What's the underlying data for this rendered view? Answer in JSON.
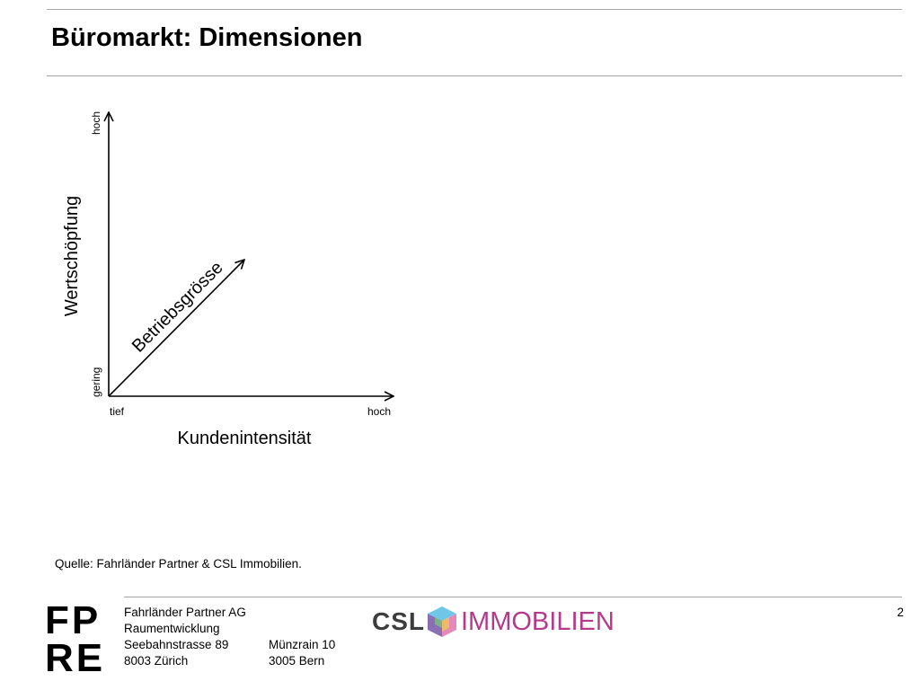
{
  "slide": {
    "title": "Büromarkt: Dimensionen",
    "source": "Quelle: Fahrländer Partner & CSL Immobilien.",
    "page_number": "2"
  },
  "diagram": {
    "y_axis_label": "Wertschöpfung",
    "y_axis_high": "hoch",
    "y_axis_low": "gering",
    "x_axis_label": "Kundenintensität",
    "x_axis_low": "tief",
    "x_axis_high": "hoch",
    "diagonal_label": "Betriebsgrösse"
  },
  "footer": {
    "logo_top": "FP",
    "logo_bottom": "RE",
    "company": "Fahrländer Partner AG",
    "department": "Raumentwicklung",
    "street_zurich": "Seebahnstrasse 89",
    "city_zurich": "8003 Zürich",
    "street_bern": "Münzrain 10",
    "city_bern": "3005 Bern"
  },
  "partner_logo": {
    "prefix": "CSL",
    "name": "IMMOBILIEN",
    "brand_color": "#b43b8a",
    "cube_colors": [
      "#6fc7e8",
      "#8a6fb5",
      "#e58ab8",
      "#f2c94c",
      "#7bc47f"
    ]
  }
}
